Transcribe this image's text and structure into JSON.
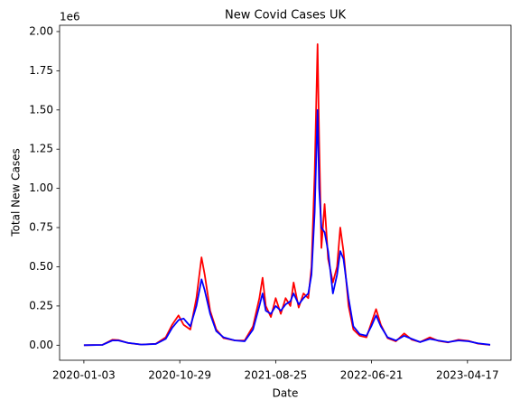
{
  "chart_data": {
    "type": "line",
    "title": "New Covid Cases UK",
    "x_label": "Date",
    "y_label": "Total New Cases",
    "y_offset_label": "1e6",
    "x": [
      "2020-01-03",
      "2020-03-01",
      "2020-04-01",
      "2020-04-20",
      "2020-05-20",
      "2020-07-01",
      "2020-08-15",
      "2020-09-15",
      "2020-10-05",
      "2020-10-25",
      "2020-11-10",
      "2020-12-01",
      "2020-12-20",
      "2021-01-05",
      "2021-01-15",
      "2021-02-01",
      "2021-02-20",
      "2021-03-15",
      "2021-04-20",
      "2021-05-20",
      "2021-06-15",
      "2021-07-05",
      "2021-07-15",
      "2021-07-25",
      "2021-08-10",
      "2021-08-25",
      "2021-09-10",
      "2021-09-25",
      "2021-10-10",
      "2021-10-20",
      "2021-11-05",
      "2021-11-20",
      "2021-12-05",
      "2021-12-15",
      "2021-12-25",
      "2022-01-03",
      "2022-01-08",
      "2022-01-15",
      "2022-01-25",
      "2022-02-05",
      "2022-02-20",
      "2022-03-05",
      "2022-03-15",
      "2022-03-25",
      "2022-04-10",
      "2022-04-25",
      "2022-05-15",
      "2022-06-05",
      "2022-06-20",
      "2022-07-05",
      "2022-07-20",
      "2022-08-10",
      "2022-09-05",
      "2022-10-01",
      "2022-10-25",
      "2022-11-20",
      "2022-12-20",
      "2023-01-15",
      "2023-02-15",
      "2023-03-20",
      "2023-04-20",
      "2023-05-20",
      "2023-06-27"
    ],
    "series": [
      {
        "color": "#ff0000",
        "values": [
          0,
          2000,
          35000,
          33000,
          14000,
          4000,
          9000,
          50000,
          130000,
          190000,
          130000,
          100000,
          300000,
          560000,
          450000,
          220000,
          100000,
          45000,
          30000,
          30000,
          120000,
          300000,
          430000,
          250000,
          180000,
          300000,
          200000,
          300000,
          250000,
          400000,
          240000,
          330000,
          300000,
          500000,
          1100000,
          1920000,
          1300000,
          620000,
          900000,
          550000,
          400000,
          500000,
          750000,
          600000,
          250000,
          100000,
          60000,
          50000,
          140000,
          230000,
          130000,
          45000,
          25000,
          75000,
          35000,
          20000,
          50000,
          28000,
          18000,
          35000,
          28000,
          10000,
          2000
        ]
      },
      {
        "color": "#0000ff",
        "values": [
          0,
          2000,
          30000,
          30000,
          15000,
          4000,
          8000,
          40000,
          110000,
          160000,
          170000,
          120000,
          250000,
          420000,
          350000,
          200000,
          90000,
          50000,
          30000,
          25000,
          100000,
          250000,
          330000,
          220000,
          200000,
          250000,
          220000,
          260000,
          280000,
          330000,
          260000,
          300000,
          330000,
          450000,
          850000,
          1500000,
          1000000,
          750000,
          720000,
          600000,
          330000,
          450000,
          600000,
          550000,
          300000,
          120000,
          70000,
          60000,
          120000,
          190000,
          120000,
          50000,
          30000,
          60000,
          40000,
          20000,
          40000,
          30000,
          20000,
          30000,
          25000,
          12000,
          3000
        ]
      }
    ],
    "xlim": [
      "2019-10-19",
      "2023-08-31"
    ],
    "xticks": [
      "2020-01-03",
      "2020-10-29",
      "2021-08-25",
      "2022-06-21",
      "2023-04-17"
    ],
    "ylim": [
      -96000,
      2040000
    ],
    "yticks": [
      {
        "value": 0,
        "label": "0.00"
      },
      {
        "value": 250000,
        "label": "0.25"
      },
      {
        "value": 500000,
        "label": "0.50"
      },
      {
        "value": 750000,
        "label": "0.75"
      },
      {
        "value": 1000000,
        "label": "1.00"
      },
      {
        "value": 1250000,
        "label": "1.25"
      },
      {
        "value": 1500000,
        "label": "1.50"
      },
      {
        "value": 1750000,
        "label": "1.75"
      },
      {
        "value": 2000000,
        "label": "2.00"
      }
    ]
  }
}
